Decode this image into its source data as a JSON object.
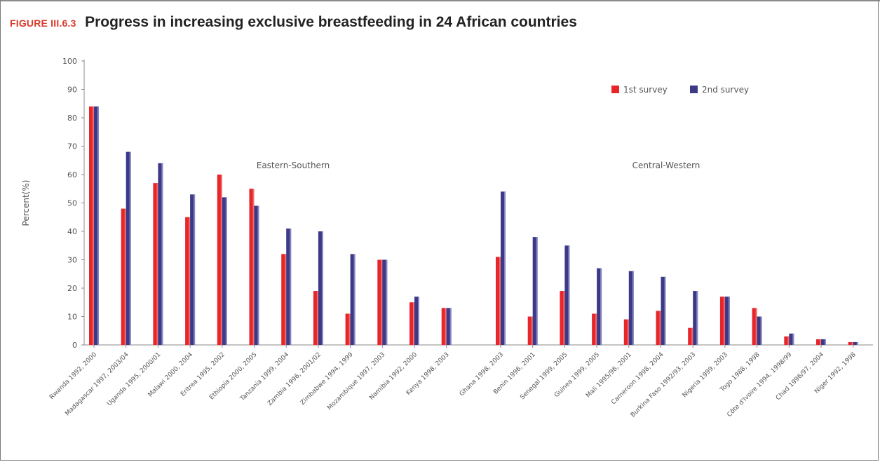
{
  "figure": {
    "label": "FIGURE III.6.3",
    "title": "Progress in increasing exclusive breastfeeding in 24 African countries"
  },
  "colors": {
    "series1": "#e8262a",
    "series2": "#3c3a86",
    "axis": "#8a8a8a",
    "text": "#555555"
  },
  "chart_data": {
    "type": "bar",
    "ylabel": "Percent(%)",
    "ylim": [
      0,
      100
    ],
    "yticks": [
      "0",
      "10",
      "20",
      "30",
      "40",
      "50",
      "60",
      "70",
      "80",
      "90",
      "100"
    ],
    "legend_position": "top-right",
    "annotations": [
      "Eastern-Southern",
      "Central-Western"
    ],
    "groups": [
      {
        "name": "Eastern-Southern",
        "categories": [
          "Rwanda 1992, 2000",
          "Madagascar 1997, 2003/04",
          "Uganda 1995, 2000/01",
          "Malawi 2000, 2004",
          "Eritrea 1995, 2002",
          "Ethiopia 2000, 2005",
          "Tanzania 1999, 2004",
          "Zambia 1996, 2001/02",
          "Zimbabwe 1994, 1999",
          "Mozambique 1997, 2003",
          "Namibia 1992, 2000",
          "Kenya 1998, 2003"
        ],
        "series": [
          {
            "name": "1st survey",
            "values": [
              84,
              48,
              57,
              45,
              60,
              55,
              32,
              19,
              11,
              30,
              15,
              13
            ]
          },
          {
            "name": "2nd survey",
            "values": [
              84,
              68,
              64,
              53,
              52,
              49,
              41,
              40,
              32,
              30,
              17,
              13
            ]
          }
        ]
      },
      {
        "name": "Central-Western",
        "categories": [
          "Ghana 1998, 2003",
          "Benin 1996, 2001",
          "Senegal 1999, 2005",
          "Guinea 1999, 2005",
          "Mali 1995/96, 2001",
          "Cameroon 1998, 2004",
          "Burkina Faso 1992/93, 2003",
          "Nigeria 1999, 2003",
          "Togo 1988, 1998",
          "Côte d'Ivoire 1994, 1998/99",
          "Chad 1996/97, 2004",
          "Niger 1992, 1998"
        ],
        "series": [
          {
            "name": "1st survey",
            "values": [
              31,
              10,
              19,
              11,
              9,
              12,
              6,
              17,
              13,
              3,
              2,
              1
            ]
          },
          {
            "name": "2nd survey",
            "values": [
              54,
              38,
              35,
              27,
              26,
              24,
              19,
              17,
              10,
              4,
              2,
              1
            ]
          }
        ]
      }
    ]
  }
}
